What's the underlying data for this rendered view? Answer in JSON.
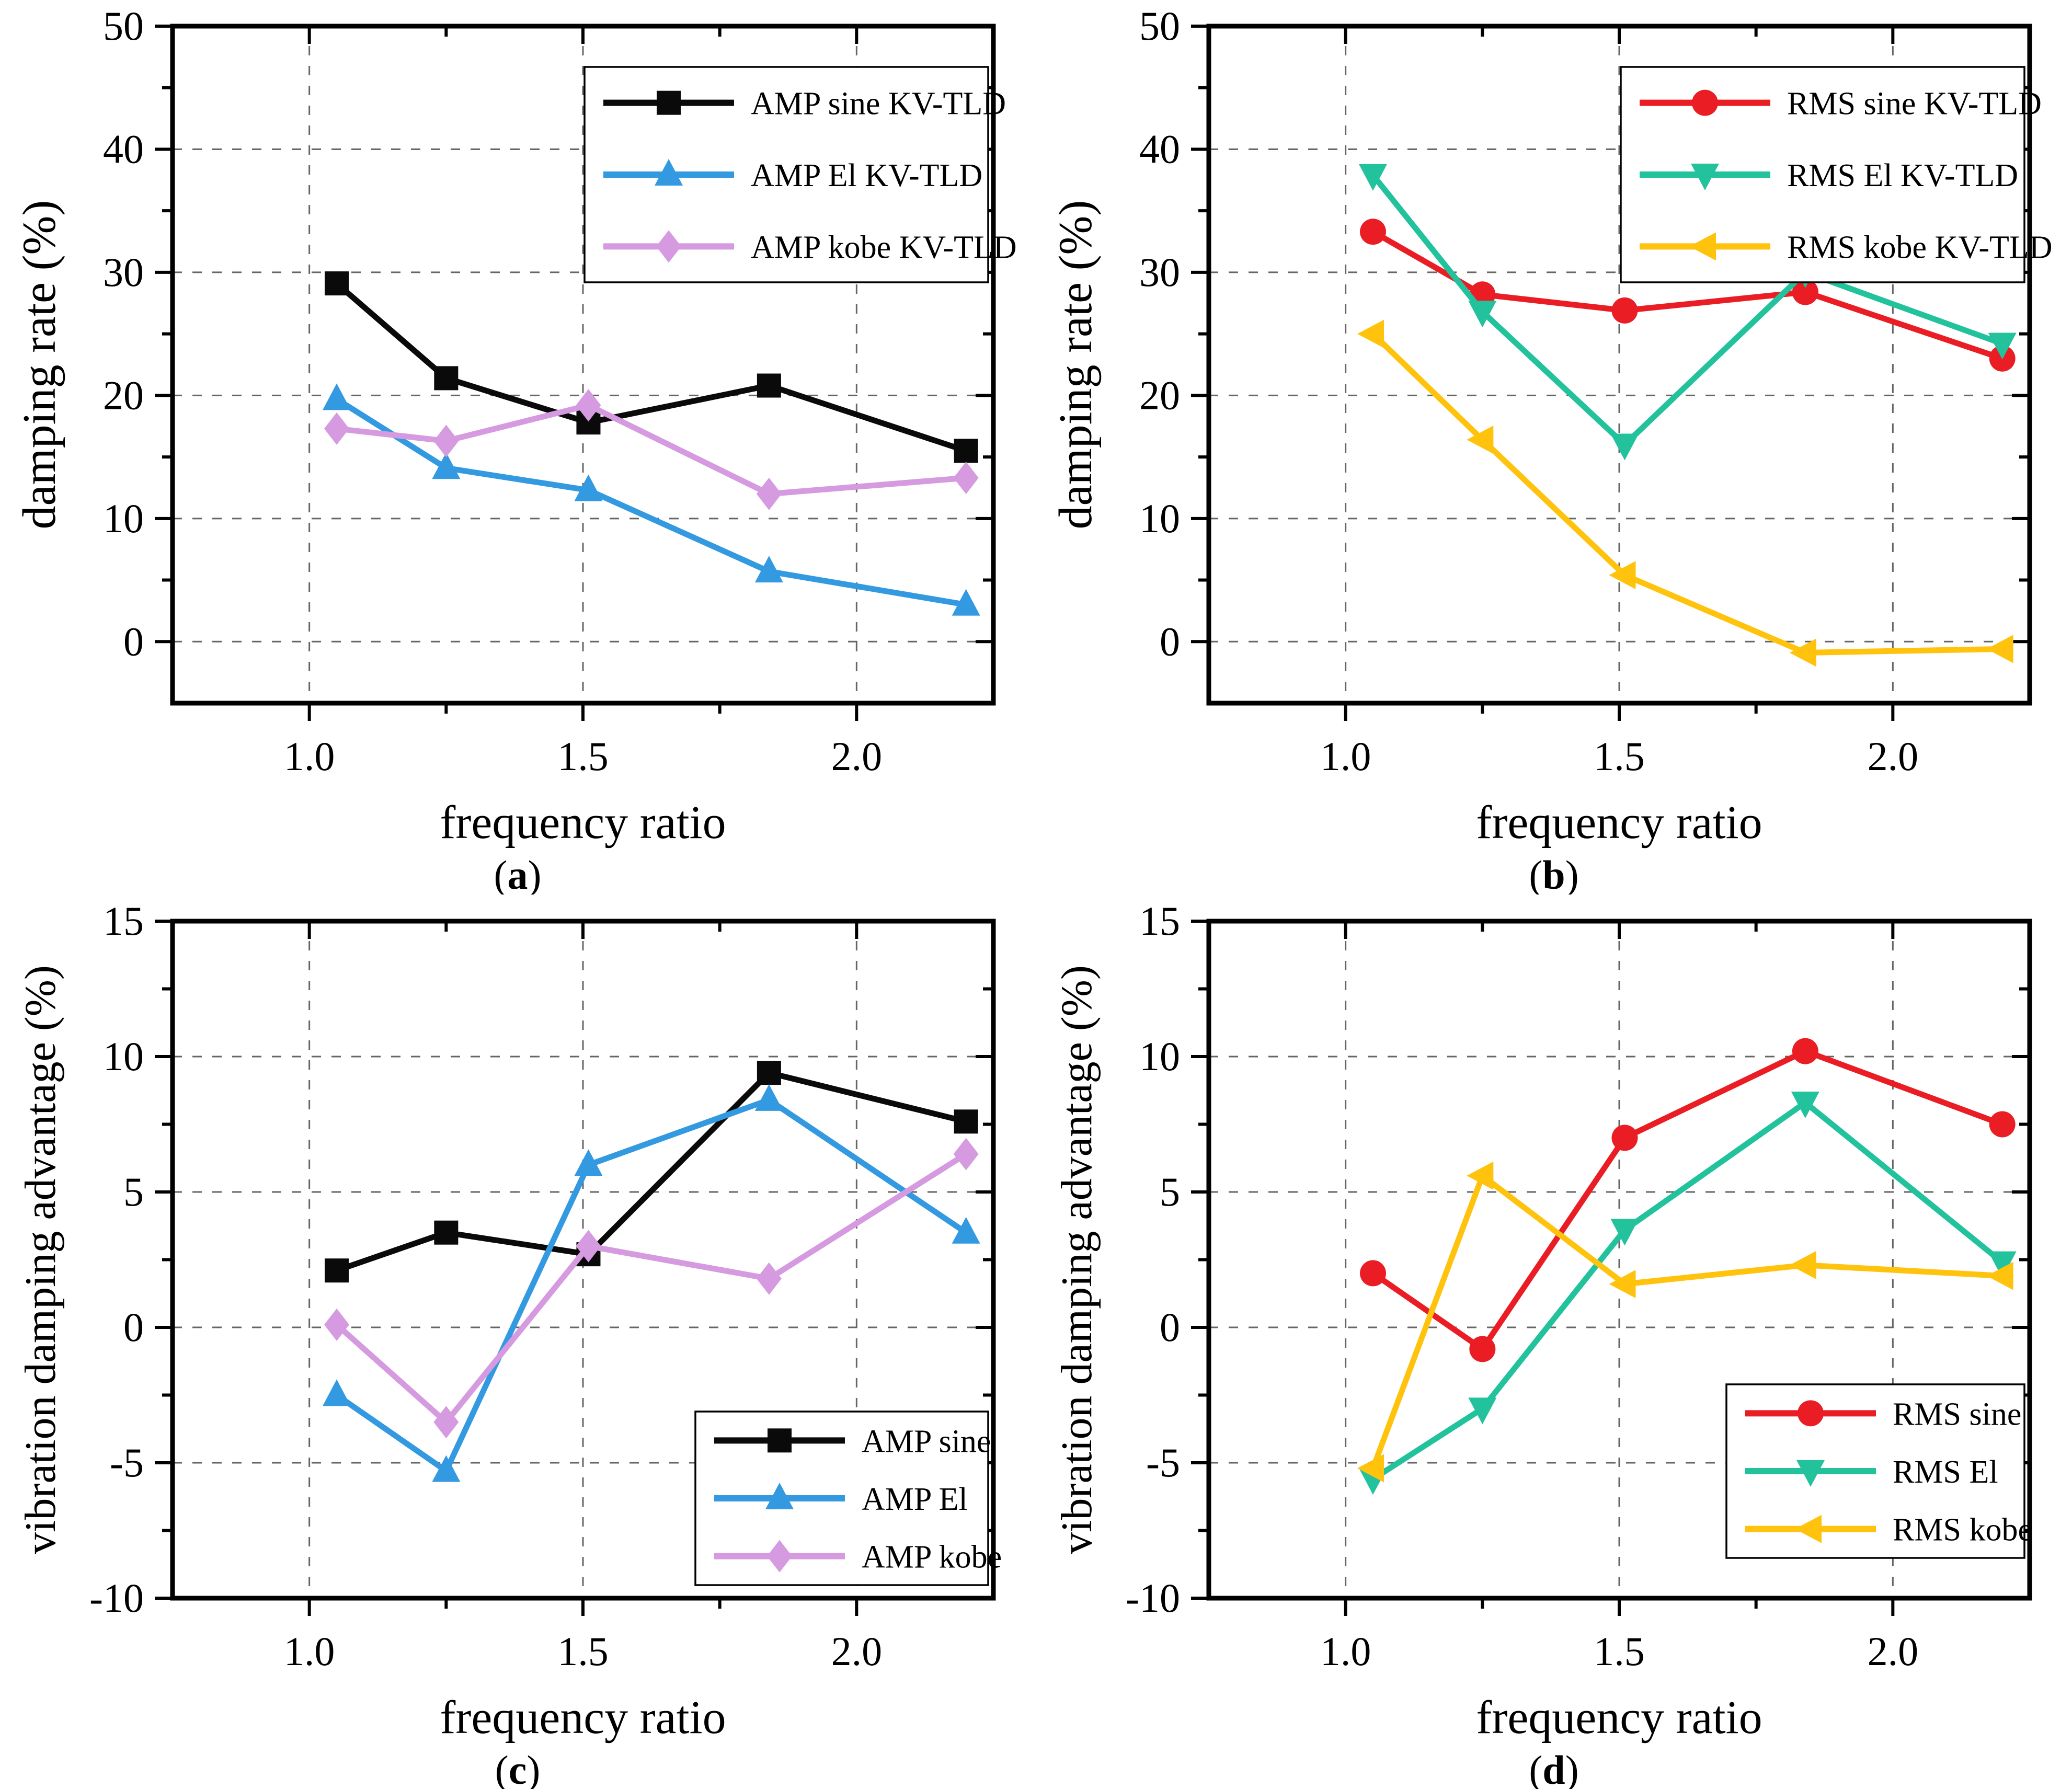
{
  "figure_caption_letters": [
    "a",
    "b",
    "c",
    "d"
  ],
  "shared": {
    "xlabel": "frequency ratio",
    "xtick_labels": [
      "1.0",
      "1.5",
      "2.0"
    ],
    "grid_color": "#666666",
    "axis_color": "#000000",
    "background": "#ffffff"
  },
  "chart_data": [
    {
      "type": "line",
      "panel": "a",
      "caption": "a",
      "xlabel": "frequency ratio",
      "ylabel": "damping rate (%)",
      "x": [
        1.05,
        1.25,
        1.51,
        1.84,
        2.2
      ],
      "xlim": [
        0.75,
        2.25
      ],
      "xticks": [
        1.0,
        1.5,
        2.0
      ],
      "xtick_labels": [
        "1.0",
        "1.5",
        "2.0"
      ],
      "xminor": [
        1.25,
        1.75
      ],
      "ylim": [
        -5,
        50
      ],
      "yticks": [
        0,
        10,
        20,
        30,
        40,
        50
      ],
      "yminor": [
        5,
        15,
        25,
        35,
        45
      ],
      "grid": true,
      "legend_position": "top-right",
      "series": [
        {
          "name": "AMP sine KV-TLD",
          "color": "#0a0a0a",
          "marker": "square",
          "values": [
            29.1,
            21.4,
            17.8,
            20.8,
            15.5
          ]
        },
        {
          "name": "AMP El KV-TLD",
          "color": "#3399E1",
          "marker": "triangle-up",
          "values": [
            19.7,
            14.1,
            12.3,
            5.7,
            3.0
          ]
        },
        {
          "name": "AMP kobe KV-TLD",
          "color": "#D59ADF",
          "marker": "diamond",
          "values": [
            17.3,
            16.3,
            19.2,
            12.0,
            13.3
          ]
        }
      ]
    },
    {
      "type": "line",
      "panel": "b",
      "caption": "b",
      "xlabel": "frequency ratio",
      "ylabel": "damping rate (%)",
      "x": [
        1.05,
        1.25,
        1.51,
        1.84,
        2.2
      ],
      "xlim": [
        0.75,
        2.25
      ],
      "xticks": [
        1.0,
        1.5,
        2.0
      ],
      "xtick_labels": [
        "1.0",
        "1.5",
        "2.0"
      ],
      "xminor": [
        1.25,
        1.75
      ],
      "ylim": [
        -5,
        50
      ],
      "yticks": [
        0,
        10,
        20,
        30,
        40,
        50
      ],
      "yminor": [
        5,
        15,
        25,
        35,
        45
      ],
      "grid": true,
      "legend_position": "top-right",
      "series": [
        {
          "name": "RMS sine KV-TLD",
          "color": "#EA1D25",
          "marker": "circle",
          "values": [
            33.3,
            28.2,
            26.9,
            28.4,
            23.0
          ]
        },
        {
          "name": "RMS El KV-TLD",
          "color": "#22C29D",
          "marker": "triangle-down",
          "values": [
            37.9,
            26.8,
            16.0,
            30.0,
            24.2
          ]
        },
        {
          "name": "RMS kobe KV-TLD",
          "color": "#FFC30D",
          "marker": "triangle-left",
          "values": [
            25.0,
            16.4,
            5.4,
            -0.9,
            -0.6
          ]
        }
      ]
    },
    {
      "type": "line",
      "panel": "c",
      "caption": "c",
      "xlabel": "frequency ratio",
      "ylabel": "vibration damping advantage (%)",
      "x": [
        1.05,
        1.25,
        1.51,
        1.84,
        2.2
      ],
      "xlim": [
        0.75,
        2.25
      ],
      "xticks": [
        1.0,
        1.5,
        2.0
      ],
      "xtick_labels": [
        "1.0",
        "1.5",
        "2.0"
      ],
      "xminor": [
        1.25,
        1.75
      ],
      "ylim": [
        -10,
        15
      ],
      "yticks": [
        -10,
        -5,
        0,
        5,
        10,
        15
      ],
      "yminor": [
        -7.5,
        -2.5,
        2.5,
        7.5,
        12.5
      ],
      "grid": true,
      "legend_position": "bottom-right",
      "series": [
        {
          "name": "AMP sine",
          "color": "#0a0a0a",
          "marker": "square",
          "values": [
            2.1,
            3.5,
            2.7,
            9.4,
            7.6
          ]
        },
        {
          "name": "AMP El",
          "color": "#3399E1",
          "marker": "triangle-up",
          "values": [
            -2.5,
            -5.3,
            6.0,
            8.4,
            3.5
          ]
        },
        {
          "name": "AMP kobe",
          "color": "#D59ADF",
          "marker": "diamond",
          "values": [
            0.1,
            -3.5,
            3.0,
            1.8,
            6.4
          ]
        }
      ]
    },
    {
      "type": "line",
      "panel": "d",
      "caption": "d",
      "xlabel": "frequency ratio",
      "ylabel": "vibration damping advantage (%)",
      "x": [
        1.05,
        1.25,
        1.51,
        1.84,
        2.2
      ],
      "xlim": [
        0.75,
        2.25
      ],
      "xticks": [
        1.0,
        1.5,
        2.0
      ],
      "xtick_labels": [
        "1.0",
        "1.5",
        "2.0"
      ],
      "xminor": [
        1.25,
        1.75
      ],
      "ylim": [
        -10,
        15
      ],
      "yticks": [
        -10,
        -5,
        0,
        5,
        10,
        15
      ],
      "yminor": [
        -7.5,
        -2.5,
        2.5,
        7.5,
        12.5
      ],
      "grid": true,
      "legend_position": "bottom-right-high",
      "series": [
        {
          "name": "RMS sine",
          "color": "#EA1D25",
          "marker": "circle",
          "values": [
            2.0,
            -0.8,
            7.0,
            10.2,
            7.5
          ]
        },
        {
          "name": "RMS El",
          "color": "#22C29D",
          "marker": "triangle-down",
          "values": [
            -5.6,
            -3.0,
            3.6,
            8.3,
            2.4
          ]
        },
        {
          "name": "RMS kobe",
          "color": "#FFC30D",
          "marker": "triangle-left",
          "values": [
            -5.2,
            5.6,
            1.6,
            2.3,
            1.9
          ]
        }
      ]
    }
  ]
}
